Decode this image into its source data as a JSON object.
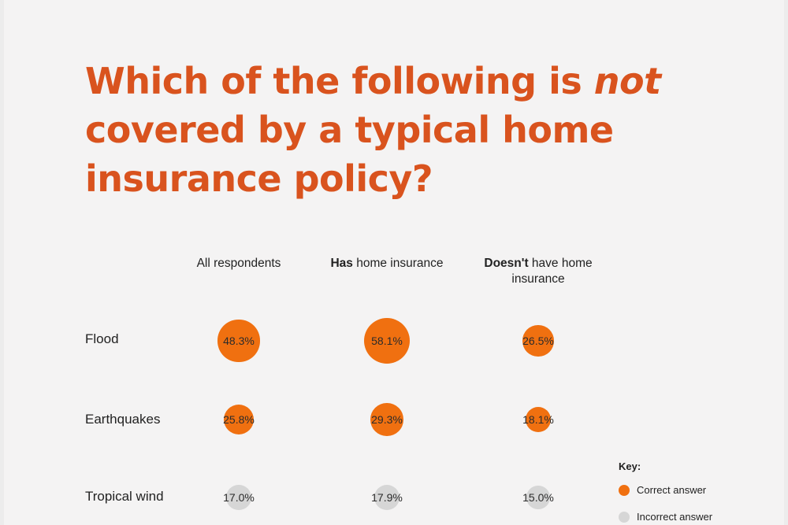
{
  "title": {
    "part1": "Which of the following is ",
    "emph": "not",
    "part2": " covered by a typical home insurance policy?"
  },
  "columns": [
    {
      "bold": "",
      "rest": "All respondents"
    },
    {
      "bold": "Has",
      "rest": " home insurance"
    },
    {
      "bold": "Doesn't",
      "rest": " have home insurance"
    }
  ],
  "key": {
    "title": "Key:",
    "correct_label": "Correct answer",
    "incorrect_label": "Incorrect answer"
  },
  "colors": {
    "correct": "#f07010",
    "incorrect": "#d6d6d6",
    "title": "#d9531e"
  },
  "chart_data": {
    "type": "bubble",
    "title": "Which of the following is not covered by a typical home insurance policy?",
    "categories": [
      "Flood",
      "Earthquakes",
      "Tropical wind"
    ],
    "series": [
      {
        "name": "All respondents",
        "values": [
          48.3,
          25.8,
          17.0
        ]
      },
      {
        "name": "Has home insurance",
        "values": [
          58.1,
          29.3,
          17.9
        ]
      },
      {
        "name": "Doesn't have home insurance",
        "values": [
          26.5,
          18.1,
          15.0
        ]
      }
    ],
    "labels": [
      [
        "48.3%",
        "58.1%",
        "26.5%"
      ],
      [
        "25.8%",
        "29.3%",
        "18.1%"
      ],
      [
        "17.0%",
        "17.9%",
        "15.0%"
      ]
    ],
    "correct": [
      true,
      true,
      false
    ]
  }
}
